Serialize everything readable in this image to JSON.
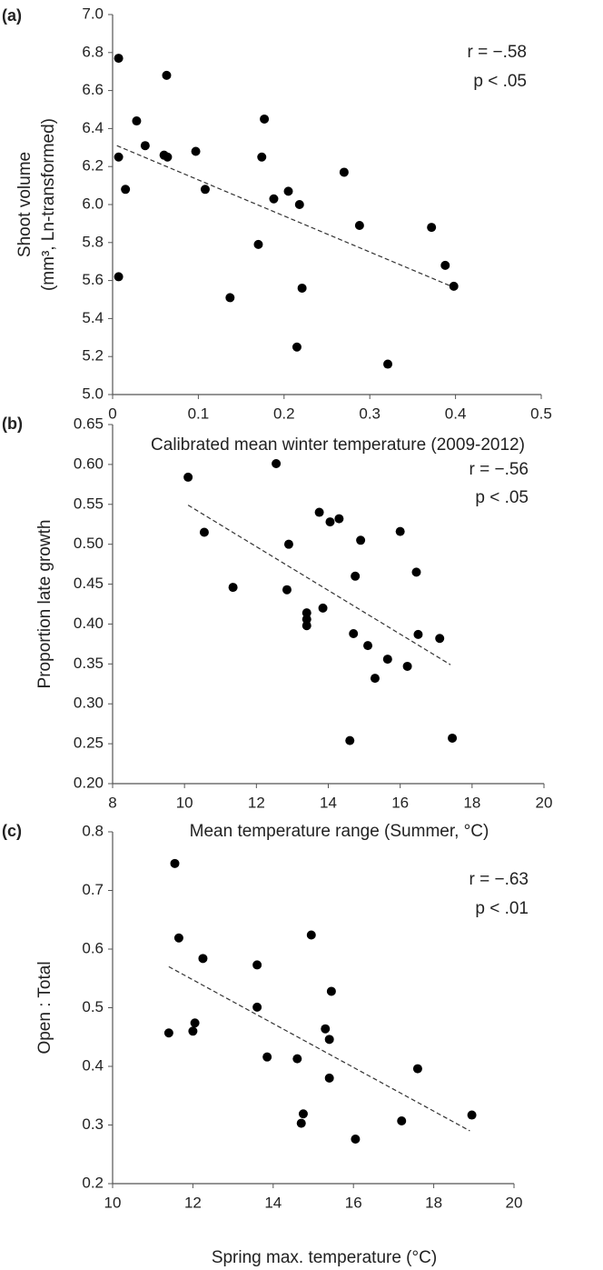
{
  "chart_data": [
    {
      "type": "scatter",
      "panel_label": "(a)",
      "xlabel": "Calibrated mean winter temperature (2009-2012)",
      "ylabel": [
        "Shoot volume",
        "(mm³, Ln-transformed)"
      ],
      "color": "#000000",
      "x": [
        0.007,
        0.007,
        0.007,
        0.015,
        0.028,
        0.038,
        0.06,
        0.064,
        0.063,
        0.097,
        0.108,
        0.137,
        0.17,
        0.174,
        0.177,
        0.188,
        0.205,
        0.215,
        0.218,
        0.221,
        0.27,
        0.288,
        0.321,
        0.372,
        0.388,
        0.398
      ],
      "y": [
        6.77,
        6.25,
        5.62,
        6.08,
        6.44,
        6.31,
        6.26,
        6.25,
        6.68,
        6.28,
        6.08,
        5.51,
        5.79,
        6.25,
        6.45,
        6.03,
        6.07,
        5.25,
        6.0,
        5.56,
        6.17,
        5.89,
        5.16,
        5.88,
        5.68,
        5.57
      ],
      "trendline": {
        "x": [
          0.005,
          0.395
        ],
        "y": [
          6.31,
          5.57
        ],
        "dashed": true
      },
      "annotations": [
        "r = −.58",
        "p < .05"
      ],
      "xlim": [
        0,
        0.5
      ],
      "xticks": [
        0,
        0.1,
        0.2,
        0.3,
        0.4,
        0.5
      ],
      "ylim": [
        5,
        7
      ],
      "yticks": [
        {
          "value": 5,
          "label": "5.0"
        },
        {
          "value": 5.2,
          "label": "5.2"
        },
        {
          "value": 5.4,
          "label": "5.4"
        },
        {
          "value": 5.6,
          "label": "5.6"
        },
        {
          "value": 5.8,
          "label": "5.8"
        },
        {
          "value": 6,
          "label": "6.0"
        },
        {
          "value": 6.2,
          "label": "6.2"
        },
        {
          "value": 6.4,
          "label": "6.4"
        },
        {
          "value": 6.6,
          "label": "6.6"
        },
        {
          "value": 6.8,
          "label": "6.8"
        },
        {
          "value": 7,
          "label": "7.0"
        }
      ]
    },
    {
      "type": "scatter",
      "panel_label": "(b)",
      "xlabel": "Mean temperature range (Summer, °C)",
      "ylabel": "Proportion late growth",
      "color": "#000000",
      "x": [
        10.1,
        10.55,
        11.35,
        12.55,
        12.85,
        12.9,
        13.4,
        13.4,
        13.4,
        13.75,
        13.85,
        14.05,
        14.3,
        14.6,
        14.7,
        14.75,
        14.9,
        15.1,
        15.3,
        15.65,
        16.0,
        16.2,
        16.45,
        16.5,
        17.1,
        17.45
      ],
      "y": [
        0.584,
        0.515,
        0.446,
        0.601,
        0.443,
        0.5,
        0.414,
        0.406,
        0.398,
        0.54,
        0.42,
        0.528,
        0.532,
        0.254,
        0.388,
        0.46,
        0.505,
        0.373,
        0.332,
        0.356,
        0.516,
        0.347,
        0.465,
        0.387,
        0.382,
        0.257
      ],
      "trendline": {
        "x": [
          10.1,
          17.4
        ],
        "y": [
          0.549,
          0.349
        ],
        "dashed": true
      },
      "annotations": [
        "r = −.56",
        "p < .05"
      ],
      "xlim": [
        8,
        20
      ],
      "xticks": [
        8,
        10,
        12,
        14,
        16,
        18,
        20
      ],
      "ylim": [
        0.2,
        0.65
      ],
      "yticks": [
        {
          "value": 0.2,
          "label": "0.20"
        },
        {
          "value": 0.25,
          "label": "0.25"
        },
        {
          "value": 0.3,
          "label": "0.30"
        },
        {
          "value": 0.35,
          "label": "0.35"
        },
        {
          "value": 0.4,
          "label": "0.40"
        },
        {
          "value": 0.45,
          "label": "0.45"
        },
        {
          "value": 0.5,
          "label": "0.50"
        },
        {
          "value": 0.55,
          "label": "0.55"
        },
        {
          "value": 0.6,
          "label": "0.60"
        },
        {
          "value": 0.65,
          "label": "0.65"
        }
      ]
    },
    {
      "type": "scatter",
      "panel_label": "(c)",
      "xlabel": "Spring max. temperature (°C)",
      "ylabel": "Open : Total",
      "color": "#000000",
      "x": [
        11.4,
        11.55,
        11.65,
        12.0,
        12.05,
        12.25,
        13.6,
        13.6,
        13.85,
        14.6,
        14.7,
        14.75,
        14.95,
        15.3,
        15.4,
        15.4,
        15.45,
        16.05,
        17.2,
        17.6,
        18.95
      ],
      "y": [
        0.457,
        0.746,
        0.619,
        0.46,
        0.474,
        0.584,
        0.573,
        0.501,
        0.416,
        0.413,
        0.303,
        0.319,
        0.624,
        0.464,
        0.38,
        0.446,
        0.528,
        0.276,
        0.307,
        0.396,
        0.317
      ],
      "trendline": {
        "x": [
          11.4,
          18.9
        ],
        "y": [
          0.57,
          0.29
        ],
        "dashed": true
      },
      "annotations": [
        "r = −.63",
        "p < .01"
      ],
      "xlim": [
        10,
        20
      ],
      "xticks": [
        10,
        12,
        14,
        16,
        18,
        20
      ],
      "ylim": [
        0.2,
        0.8
      ],
      "yticks": [
        0.2,
        0.3,
        0.4,
        0.5,
        0.6,
        0.7,
        0.8
      ]
    }
  ]
}
